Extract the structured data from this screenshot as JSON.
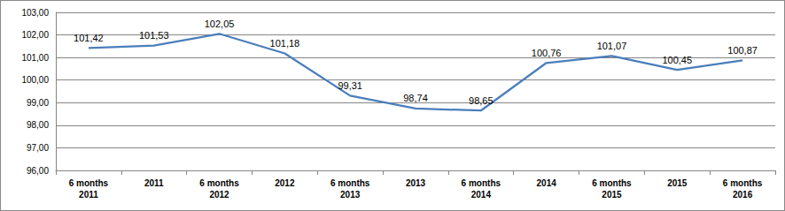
{
  "chart_data": {
    "type": "line",
    "categories": [
      "6 months\n2011",
      "2011",
      "6 months\n2012",
      "2012",
      "6 months\n2013",
      "2013",
      "6 months\n2014",
      "2014",
      "6 months\n2015",
      "2015",
      "6 months\n2016"
    ],
    "values": [
      101.42,
      101.53,
      102.05,
      101.18,
      99.31,
      98.74,
      98.65,
      100.76,
      101.07,
      100.45,
      100.87
    ],
    "value_labels": [
      "101,42",
      "101,53",
      "102,05",
      "101,18",
      "99,31",
      "98,74",
      "98,65",
      "100,76",
      "101,07",
      "100,45",
      "100,87"
    ],
    "color": "#4a7ebb",
    "ylim": [
      96,
      103
    ],
    "yticks": [
      {
        "value": 96,
        "label": "96,00"
      },
      {
        "value": 97,
        "label": "97,00"
      },
      {
        "value": 98,
        "label": "98,00"
      },
      {
        "value": 99,
        "label": "99,00"
      },
      {
        "value": 100,
        "label": "100,00"
      },
      {
        "value": 101,
        "label": "101,00"
      },
      {
        "value": 102,
        "label": "102,00"
      },
      {
        "value": 103,
        "label": "103,00"
      }
    ],
    "grid": true,
    "data_labels": true
  }
}
